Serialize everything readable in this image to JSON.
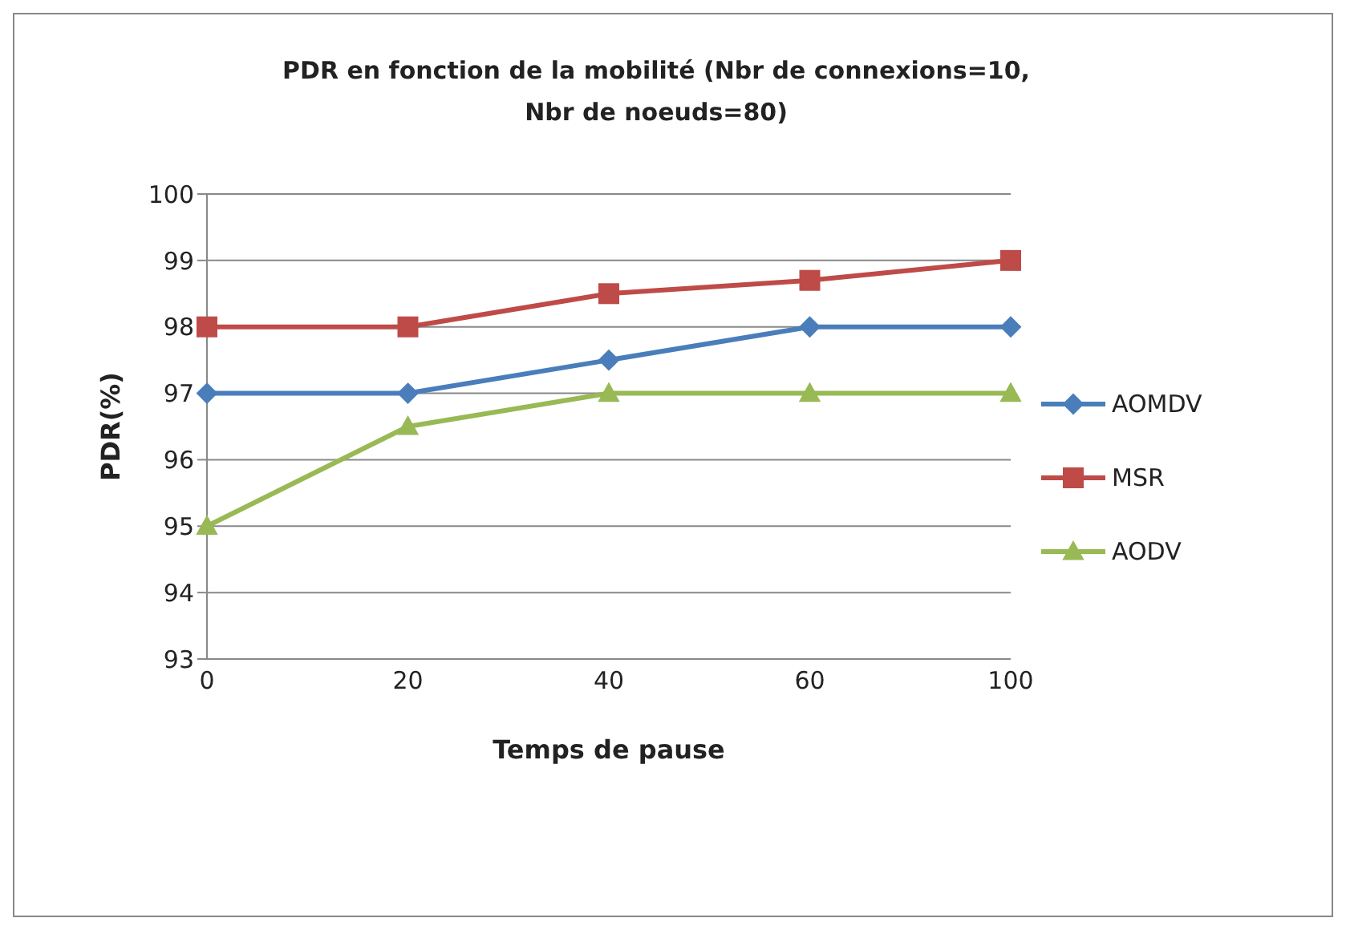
{
  "chart_data": {
    "type": "line",
    "title": "PDR en fonction de la mobilité (Nbr de connexions=10,  Nbr de noeuds=80)",
    "xlabel": "Temps de pause",
    "ylabel": "PDR(%)",
    "categories": [
      "0",
      "20",
      "40",
      "60",
      "100"
    ],
    "series": [
      {
        "name": "AOMDV",
        "color": "#4a7ebb",
        "marker": "diamond",
        "values": [
          97,
          97,
          97.5,
          98,
          98
        ]
      },
      {
        "name": "MSR",
        "color": "#be4b48",
        "marker": "square",
        "values": [
          98,
          98,
          98.5,
          98.7,
          99
        ]
      },
      {
        "name": "AODV",
        "color": "#98b954",
        "marker": "triangle",
        "values": [
          95,
          96.5,
          97,
          97,
          97
        ]
      }
    ],
    "ylim": [
      93,
      100
    ],
    "yticks": [
      93,
      94,
      95,
      96,
      97,
      98,
      99,
      100
    ],
    "grid": "y",
    "legend": "right",
    "line_style": "solid"
  }
}
